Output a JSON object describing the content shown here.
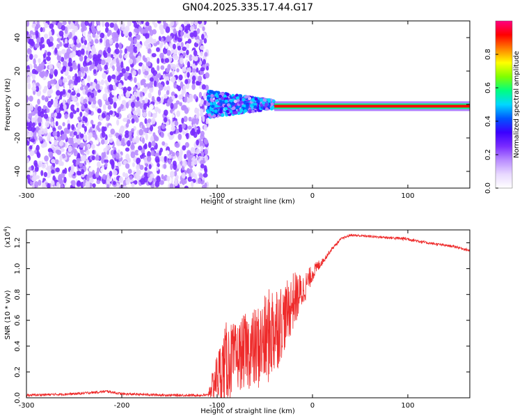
{
  "title": "GN04.2025.335.17.44.G17",
  "colors": {
    "snr_line": "#ee2a2a",
    "spectrogram_scale": [
      "#ffffff",
      "#e8d8ff",
      "#b98cff",
      "#7a2cff",
      "#3b00ff",
      "#0055ff",
      "#00d8ff",
      "#00ff80",
      "#80ff00",
      "#ffff00",
      "#ff8000",
      "#ff0000",
      "#ff0080"
    ]
  },
  "chart_data": [
    {
      "type": "heatmap",
      "name": "spectrogram",
      "xlabel": "Height of straight line (km)",
      "ylabel": "Frequency (Hz)",
      "xlim": [
        -300,
        165
      ],
      "ylim": [
        -50,
        50
      ],
      "x_ticks": [
        -300,
        -200,
        -100,
        0,
        100
      ],
      "y_ticks": [
        -40,
        -20,
        0,
        20,
        40
      ],
      "x_tick_labels": [
        "-300",
        "-200",
        "-100",
        "0",
        "100"
      ],
      "y_tick_labels": [
        "-40",
        "-20",
        "0",
        "20",
        "40"
      ],
      "colorbar": {
        "label": "Normalized spectral amplitude",
        "range": [
          0,
          1
        ],
        "ticks": [
          0.0,
          0.2,
          0.4,
          0.6,
          0.8
        ],
        "tick_labels": [
          "0.0",
          "0.2",
          "0.4",
          "0.6",
          "0.8"
        ]
      },
      "regions": [
        {
          "x_range": [
            -300,
            -110
          ],
          "freq_range": [
            -50,
            50
          ],
          "amplitude": 0.1,
          "description_value": "noise"
        },
        {
          "x_range": [
            -110,
            -40
          ],
          "freq_range": [
            -8,
            8
          ],
          "amplitude": 0.3
        },
        {
          "x_range": [
            -40,
            165
          ],
          "freq_range": [
            -2,
            0
          ],
          "amplitude": 0.95
        }
      ]
    },
    {
      "type": "line",
      "name": "snr",
      "xlabel": "Height of straight line (km)",
      "ylabel": "SNR (10 * v/v)",
      "y_multiplier_label": "(x10",
      "y_multiplier_exp": "4",
      "y_multiplier_close": ")",
      "xlim": [
        -300,
        165
      ],
      "ylim": [
        0,
        1.3
      ],
      "x_ticks": [
        -300,
        -200,
        -100,
        0,
        100
      ],
      "y_ticks": [
        0.0,
        0.2,
        0.4,
        0.6,
        0.8,
        1.0,
        1.2
      ],
      "x_tick_labels": [
        "-300",
        "-200",
        "-100",
        "0",
        "100"
      ],
      "y_tick_labels": [
        "0.0",
        "0.2",
        "0.4",
        "0.6",
        "0.8",
        "1.0",
        "1.2"
      ],
      "series": [
        {
          "x": [
            -300,
            -250,
            -215,
            -200,
            -150,
            -110,
            -100,
            -90,
            -80,
            -70,
            -60,
            -50,
            -40,
            -30,
            -20,
            -10,
            0,
            10,
            20,
            30,
            40,
            60,
            80,
            100,
            120,
            140,
            150,
            165
          ],
          "y": [
            0.02,
            0.03,
            0.05,
            0.03,
            0.02,
            0.02,
            0.12,
            0.2,
            0.25,
            0.3,
            0.3,
            0.35,
            0.45,
            0.55,
            0.7,
            0.8,
            0.95,
            1.05,
            1.15,
            1.23,
            1.26,
            1.25,
            1.24,
            1.23,
            1.2,
            1.18,
            1.17,
            1.14
          ],
          "y_spread_top": [
            0.02,
            0.02,
            0.02,
            0.02,
            0.02,
            0.02,
            0.3,
            0.5,
            0.4,
            0.45,
            0.5,
            0.55,
            0.6,
            0.4,
            0.35,
            0.2,
            0.1,
            0.05,
            0.03,
            0.02,
            0.02,
            0.02,
            0.02,
            0.03,
            0.02,
            0.02,
            0.02,
            0.02
          ]
        }
      ]
    }
  ]
}
